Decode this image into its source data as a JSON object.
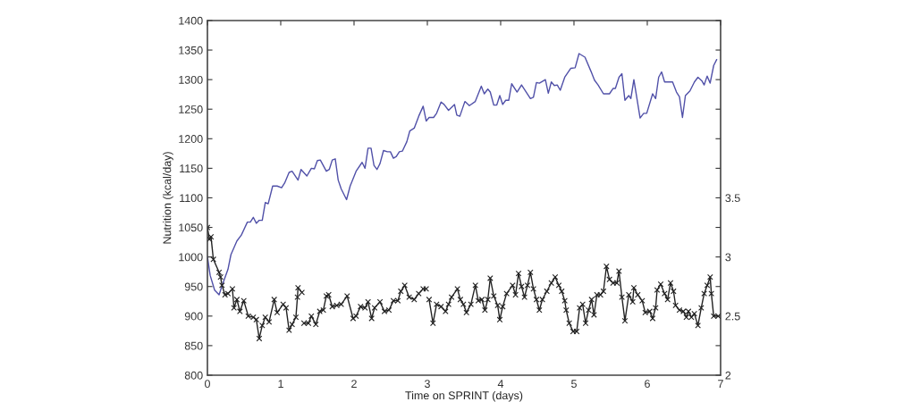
{
  "chart_data": {
    "type": "line",
    "xlabel": "Time on SPRINT (days)",
    "ylabel": "Nutrition (kcal/day)",
    "xlim": [
      0,
      7
    ],
    "xticks": [
      0,
      1,
      2,
      3,
      4,
      5,
      6,
      7
    ],
    "ylim": [
      800,
      1400
    ],
    "yticks": [
      800,
      850,
      900,
      950,
      1000,
      1050,
      1100,
      1150,
      1200,
      1250,
      1300,
      1350,
      1400
    ],
    "y2lim": [
      2,
      5
    ],
    "y2ticks": [
      2,
      {
        "value": 2.25,
        "label": null
      },
      2.5,
      {
        "value": 2.75,
        "label": null
      },
      3,
      {
        "value": 3.25,
        "label": null
      },
      3.5,
      {
        "value": 3.75,
        "label": null
      },
      {
        "value": 4,
        "label": null
      },
      {
        "value": 4.25,
        "label": null
      },
      {
        "value": 4.5,
        "label": null
      },
      {
        "value": 4.75,
        "label": null
      },
      {
        "value": 5,
        "label": null
      }
    ],
    "grid": false,
    "legend": false,
    "series": [
      {
        "color": "#5050a8",
        "marker": "none",
        "line_style": "solid",
        "x": [
          0,
          0.037,
          0.098,
          0.159,
          0.199,
          0.28,
          0.321,
          0.402,
          0.463,
          0.545,
          0.585,
          0.626,
          0.667,
          0.707,
          0.748,
          0.789,
          0.829,
          0.89,
          0.951,
          1.012,
          1.053,
          1.114,
          1.155,
          1.236,
          1.277,
          1.357,
          1.418,
          1.459,
          1.5,
          1.54,
          1.622,
          1.662,
          1.703,
          1.744,
          1.784,
          1.825,
          1.898,
          1.947,
          2.028,
          2.11,
          2.15,
          2.191,
          2.232,
          2.272,
          2.313,
          2.354,
          2.402,
          2.455,
          2.496,
          2.537,
          2.577,
          2.618,
          2.659,
          2.72,
          2.76,
          2.821,
          2.882,
          2.943,
          2.984,
          3.024,
          3.085,
          3.126,
          3.187,
          3.228,
          3.289,
          3.37,
          3.402,
          3.443,
          3.512,
          3.573,
          3.654,
          3.736,
          3.776,
          3.825,
          3.858,
          3.906,
          3.947,
          3.988,
          4.028,
          4.069,
          4.11,
          4.15,
          4.224,
          4.285,
          4.406,
          4.447,
          4.488,
          4.528,
          4.61,
          4.65,
          4.691,
          4.732,
          4.772,
          4.813,
          4.874,
          4.955,
          5.016,
          5.069,
          5.15,
          5.232,
          5.28,
          5.329,
          5.402,
          5.484,
          5.533,
          5.565,
          5.614,
          5.654,
          5.695,
          5.748,
          5.776,
          5.817,
          5.902,
          5.951,
          5.992,
          6.073,
          6.114,
          6.155,
          6.195,
          6.236,
          6.297,
          6.345,
          6.398,
          6.439,
          6.48,
          6.52,
          6.582,
          6.643,
          6.691,
          6.744,
          6.776,
          6.817,
          6.857,
          6.906,
          6.947
        ],
        "values": [
          1001,
          969,
          944,
          936,
          951,
          979,
          1004,
          1027,
          1037,
          1059,
          1059,
          1067,
          1057,
          1062,
          1062,
          1092,
          1090,
          1120,
          1120,
          1117,
          1125,
          1143,
          1145,
          1130,
          1148,
          1137,
          1150,
          1149,
          1163,
          1164,
          1145,
          1148,
          1164,
          1166,
          1130,
          1115,
          1097,
          1120,
          1145,
          1160,
          1150,
          1184,
          1184,
          1155,
          1148,
          1158,
          1180,
          1178,
          1178,
          1167,
          1170,
          1178,
          1179,
          1195,
          1213,
          1218,
          1238,
          1255,
          1230,
          1236,
          1236,
          1243,
          1262,
          1258,
          1248,
          1258,
          1240,
          1238,
          1263,
          1256,
          1263,
          1289,
          1276,
          1284,
          1279,
          1257,
          1257,
          1273,
          1258,
          1265,
          1265,
          1293,
          1279,
          1291,
          1268,
          1270,
          1295,
          1294,
          1300,
          1277,
          1296,
          1290,
          1291,
          1282,
          1304,
          1319,
          1320,
          1344,
          1338,
          1314,
          1299,
          1291,
          1276,
          1276,
          1285,
          1285,
          1304,
          1310,
          1265,
          1273,
          1268,
          1300,
          1235,
          1243,
          1243,
          1276,
          1268,
          1304,
          1313,
          1296,
          1296,
          1296,
          1279,
          1271,
          1236,
          1273,
          1281,
          1296,
          1304,
          1298,
          1291,
          1306,
          1294,
          1324,
          1334
        ]
      },
      {
        "color": "#222222",
        "marker": "cross",
        "line_style": "solid",
        "axis": "y2",
        "x": [
          0,
          0.028,
          0.049,
          0.081,
          0.159,
          0.179,
          0.199,
          0.24,
          0.28,
          0.341,
          0.362,
          0.402,
          0.443,
          0.496,
          0.557,
          0.626,
          0.667,
          0.707,
          0.748,
          0.789,
          0.841,
          0.911,
          0.951,
          1.033,
          1.073,
          1.114,
          1.155,
          1.207,
          1.228,
          1.236,
          1.289,
          1.3,
          1.317,
          1.378,
          1.418,
          1.479,
          1.532,
          1.581,
          1.622,
          1.654,
          1.703,
          1.764,
          1.825,
          1.906,
          1.987,
          2.028,
          2.089,
          2.15,
          2.191,
          2.24,
          2.28,
          2.354,
          2.415,
          2.476,
          2.537,
          2.598,
          2.638,
          2.691,
          2.752,
          2.821,
          2.882,
          2.943,
          2.984,
          3.0,
          3.024,
          3.077,
          3.126,
          3.187,
          3.248,
          3.289,
          3.33,
          3.41,
          3.45,
          3.492,
          3.533,
          3.594,
          3.655,
          3.695,
          3.744,
          3.785,
          3.825,
          3.858,
          3.906,
          3.959,
          3.988,
          4.028,
          4.081,
          4.163,
          4.203,
          4.244,
          4.285,
          4.325,
          4.366,
          4.406,
          4.447,
          4.488,
          4.528,
          4.569,
          4.63,
          4.691,
          4.744,
          4.793,
          4.833,
          4.874,
          4.894,
          4.935,
          4.988,
          5.037,
          5.077,
          5.118,
          5.159,
          5.199,
          5.24,
          5.273,
          5.313,
          5.362,
          5.402,
          5.443,
          5.484,
          5.533,
          5.585,
          5.614,
          5.654,
          5.695,
          5.748,
          5.801,
          5.817,
          5.87,
          5.931,
          5.972,
          6.033,
          6.073,
          6.114,
          6.134,
          6.183,
          6.236,
          6.277,
          6.317,
          6.358,
          6.386,
          6.439,
          6.492,
          6.533,
          6.561,
          6.602,
          6.642,
          6.691,
          6.736,
          6.776,
          6.817,
          6.858,
          6.874,
          6.906,
          6.967
        ],
        "values": [
          3.25,
          3.15,
          3.17,
          2.98,
          2.87,
          2.83,
          2.76,
          2.68,
          2.69,
          2.73,
          2.57,
          2.64,
          2.54,
          2.63,
          2.5,
          2.49,
          2.47,
          2.31,
          2.42,
          2.49,
          2.45,
          2.64,
          2.53,
          2.6,
          2.57,
          2.38,
          2.43,
          2.49,
          2.66,
          2.74,
          2.7,
          null,
          2.44,
          2.44,
          2.5,
          2.43,
          2.54,
          2.55,
          2.67,
          2.68,
          2.58,
          2.59,
          2.6,
          2.67,
          2.48,
          2.5,
          2.58,
          2.57,
          2.62,
          2.48,
          2.57,
          2.62,
          2.54,
          2.55,
          2.63,
          2.63,
          2.71,
          2.76,
          2.66,
          2.64,
          2.69,
          2.73,
          2.73,
          null,
          2.64,
          2.44,
          2.6,
          2.58,
          2.54,
          2.6,
          2.66,
          2.73,
          2.64,
          2.6,
          2.53,
          2.6,
          2.76,
          2.63,
          2.64,
          2.55,
          2.64,
          2.82,
          2.67,
          2.59,
          2.47,
          2.58,
          2.69,
          2.76,
          2.68,
          2.86,
          2.75,
          2.66,
          2.76,
          2.87,
          2.73,
          2.64,
          2.55,
          2.64,
          2.71,
          2.78,
          2.83,
          2.76,
          2.71,
          2.63,
          2.55,
          2.44,
          2.37,
          2.37,
          2.57,
          2.6,
          2.44,
          2.55,
          2.64,
          2.51,
          2.68,
          2.68,
          2.71,
          2.92,
          2.81,
          2.78,
          2.78,
          2.88,
          2.66,
          2.46,
          2.68,
          2.62,
          2.74,
          2.68,
          2.63,
          2.53,
          2.54,
          2.48,
          2.57,
          2.72,
          2.77,
          2.69,
          2.64,
          2.78,
          2.71,
          2.59,
          2.55,
          2.54,
          2.49,
          2.54,
          2.49,
          2.52,
          2.42,
          2.57,
          2.69,
          2.76,
          2.83,
          2.69,
          2.5,
          2.5
        ]
      }
    ]
  }
}
